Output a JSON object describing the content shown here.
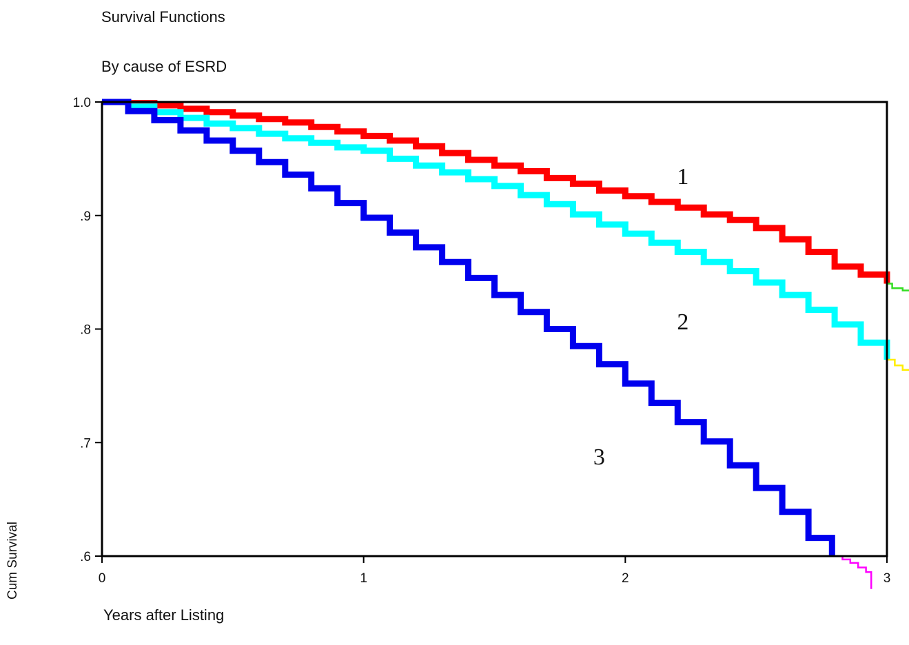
{
  "chart_data": {
    "type": "line",
    "title": "Survival Functions",
    "subtitle": "By cause of ESRD",
    "xlabel": "Years after Listing",
    "ylabel": "Cum Survival",
    "xlim": [
      0,
      3
    ],
    "ylim": [
      0.6,
      1.0
    ],
    "x_ticks": [
      {
        "value": 0,
        "label": "0"
      },
      {
        "value": 1,
        "label": "1"
      },
      {
        "value": 2,
        "label": "2"
      },
      {
        "value": 3,
        "label": "3"
      }
    ],
    "y_ticks": [
      {
        "value": 1.0,
        "label": "1.0"
      },
      {
        "value": 0.9,
        "label": ".9"
      },
      {
        "value": 0.8,
        "label": ".8"
      },
      {
        "value": 0.7,
        "label": ".7"
      },
      {
        "value": 0.6,
        "label": ".6"
      }
    ],
    "grid": false,
    "series": [
      {
        "label": "1",
        "color": "#ff0000",
        "label_at": [
          2.22,
          0.935
        ],
        "x": [
          0,
          0.1,
          0.2,
          0.3,
          0.4,
          0.5,
          0.6,
          0.7,
          0.8,
          0.9,
          1.0,
          1.1,
          1.2,
          1.3,
          1.4,
          1.5,
          1.6,
          1.7,
          1.8,
          1.9,
          2.0,
          2.1,
          2.2,
          2.3,
          2.4,
          2.5,
          2.6,
          2.7,
          2.8,
          2.9,
          3.0
        ],
        "y": [
          1.0,
          0.999,
          0.997,
          0.994,
          0.991,
          0.988,
          0.985,
          0.982,
          0.978,
          0.974,
          0.97,
          0.966,
          0.961,
          0.955,
          0.949,
          0.944,
          0.939,
          0.933,
          0.928,
          0.922,
          0.917,
          0.912,
          0.907,
          0.901,
          0.896,
          0.889,
          0.879,
          0.868,
          0.855,
          0.848,
          0.84
        ]
      },
      {
        "label": "2",
        "color": "#00ffff",
        "label_at": [
          2.22,
          0.807
        ],
        "x": [
          0,
          0.1,
          0.2,
          0.3,
          0.4,
          0.5,
          0.6,
          0.7,
          0.8,
          0.9,
          1.0,
          1.1,
          1.2,
          1.3,
          1.4,
          1.5,
          1.6,
          1.7,
          1.8,
          1.9,
          2.0,
          2.1,
          2.2,
          2.3,
          2.4,
          2.5,
          2.6,
          2.7,
          2.8,
          2.9,
          3.0
        ],
        "y": [
          1.0,
          0.996,
          0.991,
          0.986,
          0.981,
          0.977,
          0.972,
          0.968,
          0.964,
          0.96,
          0.957,
          0.95,
          0.944,
          0.938,
          0.932,
          0.926,
          0.918,
          0.91,
          0.901,
          0.892,
          0.884,
          0.876,
          0.868,
          0.859,
          0.851,
          0.841,
          0.83,
          0.817,
          0.804,
          0.788,
          0.773
        ]
      },
      {
        "label": "3",
        "color": "#0000ee",
        "label_at": [
          1.9,
          0.688
        ],
        "x": [
          0,
          0.1,
          0.2,
          0.3,
          0.4,
          0.5,
          0.6,
          0.7,
          0.8,
          0.9,
          1.0,
          1.1,
          1.2,
          1.3,
          1.4,
          1.5,
          1.6,
          1.7,
          1.8,
          1.9,
          2.0,
          2.1,
          2.2,
          2.3,
          2.4,
          2.5,
          2.6,
          2.7,
          2.79
        ],
        "y": [
          1.0,
          0.992,
          0.984,
          0.975,
          0.966,
          0.957,
          0.947,
          0.936,
          0.924,
          0.911,
          0.898,
          0.885,
          0.872,
          0.859,
          0.845,
          0.83,
          0.815,
          0.8,
          0.785,
          0.769,
          0.752,
          0.735,
          0.718,
          0.701,
          0.68,
          0.66,
          0.639,
          0.616,
          0.6
        ]
      },
      {
        "label": "",
        "color": "#33dd22",
        "x": [
          3.0,
          3.02,
          3.02,
          3.06,
          3.06,
          3.1
        ],
        "y": [
          0.84,
          0.84,
          0.836,
          0.836,
          0.834,
          0.834
        ]
      },
      {
        "label": "",
        "color": "#ffee00",
        "x": [
          3.0,
          3.03,
          3.06,
          3.1
        ],
        "y": [
          0.773,
          0.768,
          0.764,
          0.76
        ]
      },
      {
        "label": "",
        "color": "#ff00ff",
        "x": [
          2.79,
          2.83,
          2.86,
          2.89,
          2.92,
          2.94
        ],
        "y": [
          0.6,
          0.597,
          0.594,
          0.59,
          0.586,
          0.571
        ]
      }
    ]
  }
}
